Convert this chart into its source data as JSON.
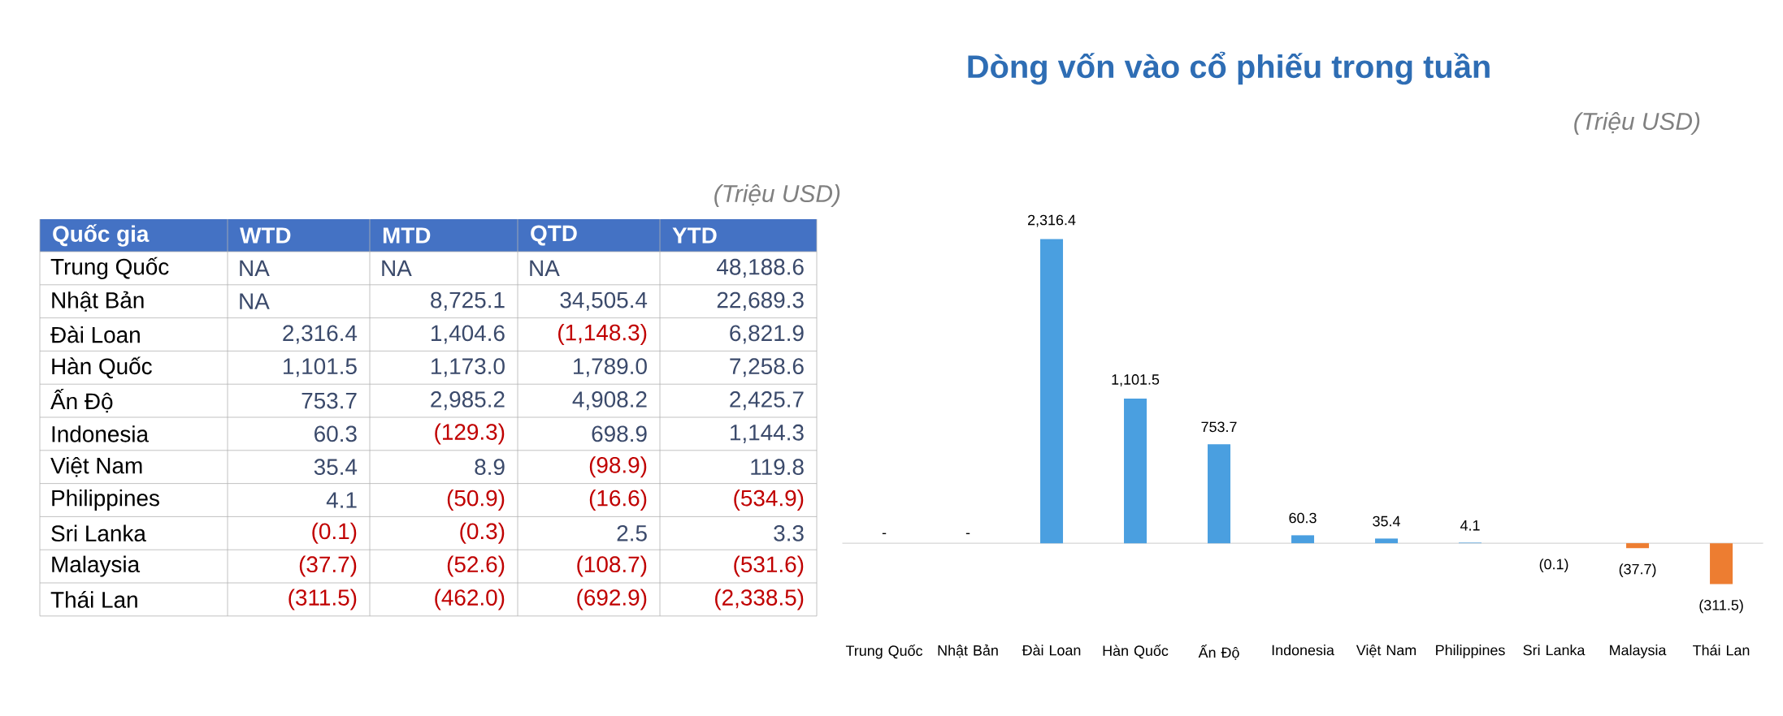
{
  "chart_data": [
    {
      "type": "other",
      "xlabel": "Quốc gia",
      "annotations": [
        "(Triệu USD)"
      ],
      "categories": [
        "Trung Quốc",
        "Nhật Bản",
        "Đài Loan",
        "Hàn Quốc",
        "Ấn Độ",
        "Indonesia",
        "Việt Nam",
        "Philippines",
        "Sri Lanka",
        "Malaysia",
        "Thái Lan"
      ],
      "series": [
        {
          "name": "WTD",
          "values": [
            null,
            null,
            2316.4,
            1101.5,
            753.7,
            60.3,
            35.4,
            4.1,
            -0.1,
            -37.7,
            -311.5
          ],
          "value_labels": [
            "NA",
            "NA",
            "2,316.4",
            "1,101.5",
            "753.7",
            "60.3",
            "35.4",
            "4.1",
            "(0.1)",
            "(37.7)",
            "(311.5)"
          ]
        },
        {
          "name": "MTD",
          "values": [
            null,
            8725.1,
            1404.6,
            1173.0,
            2985.2,
            -129.3,
            8.9,
            -50.9,
            -0.3,
            -52.6,
            -462.0
          ],
          "value_labels": [
            "NA",
            "8,725.1",
            "1,404.6",
            "1,173.0",
            "2,985.2",
            "(129.3)",
            "8.9",
            "(50.9)",
            "(0.3)",
            "(52.6)",
            "(462.0)"
          ]
        },
        {
          "name": "QTD",
          "values": [
            null,
            34505.4,
            -1148.3,
            1789.0,
            4908.2,
            698.9,
            -98.9,
            -16.6,
            2.5,
            -108.7,
            -692.9
          ],
          "value_labels": [
            "NA",
            "34,505.4",
            "(1,148.3)",
            "1,789.0",
            "4,908.2",
            "698.9",
            "(98.9)",
            "(16.6)",
            "2.5",
            "(108.7)",
            "(692.9)"
          ]
        },
        {
          "name": "YTD",
          "values": [
            48188.6,
            22689.3,
            6821.9,
            7258.6,
            2425.7,
            1144.3,
            119.8,
            -534.9,
            3.3,
            -531.6,
            -2338.5
          ],
          "value_labels": [
            "48,188.6",
            "22,689.3",
            "6,821.9",
            "7,258.6",
            "2,425.7",
            "1,144.3",
            "119.8",
            "(534.9)",
            "3.3",
            "(531.6)",
            "(2,338.5)"
          ]
        }
      ]
    },
    {
      "type": "bar",
      "title": "Dòng vốn vào cổ phiếu trong tuần",
      "annotations": [
        "(Triệu USD)"
      ],
      "categories": [
        "Trung Quốc",
        "Nhật Bản",
        "Đài Loan",
        "Hàn Quốc",
        "Ấn Độ",
        "Indonesia",
        "Việt Nam",
        "Philippines",
        "Sri Lanka",
        "Malaysia",
        "Thái Lan"
      ],
      "values": [
        null,
        null,
        2316.4,
        1101.5,
        753.7,
        60.3,
        35.4,
        4.1,
        -0.1,
        -37.7,
        -311.5
      ],
      "value_labels": [
        "-",
        "-",
        "2,316.4",
        "1,101.5",
        "753.7",
        "60.3",
        "35.4",
        "4.1",
        "(0.1)",
        "(37.7)",
        "(311.5)"
      ],
      "colors": [
        "#4a9fe0",
        "#4a9fe0",
        "#4a9fe0",
        "#4a9fe0",
        "#4a9fe0",
        "#4a9fe0",
        "#4a9fe0",
        "#4a9fe0",
        "#ed7d31",
        "#ed7d31",
        "#ed7d31"
      ],
      "tick_labels": "x"
    }
  ]
}
